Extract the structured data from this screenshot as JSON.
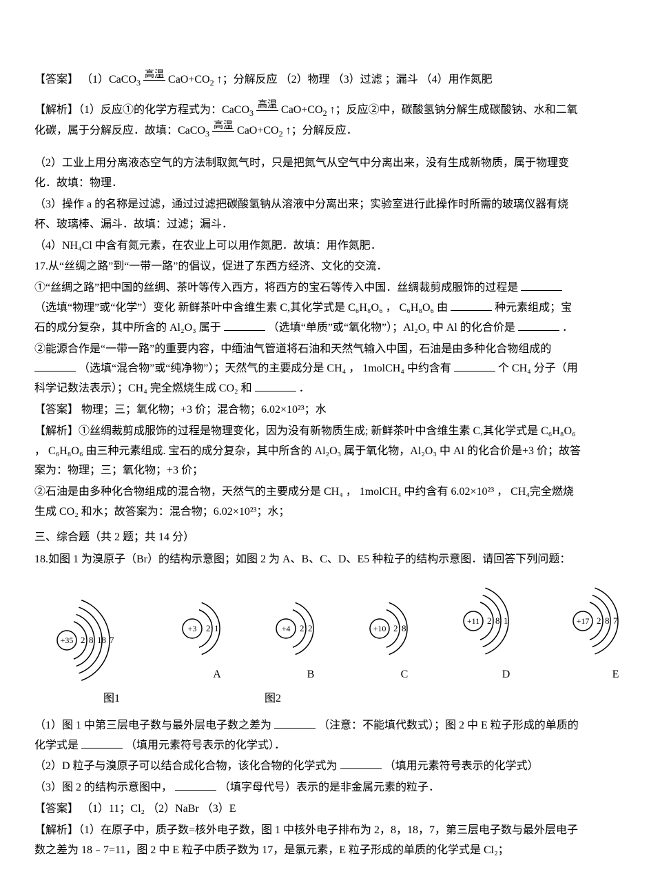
{
  "colors": {
    "text": "#000000",
    "bg": "#ffffff",
    "line": "#000000"
  },
  "typography": {
    "body_fontsize_pt": 12,
    "line_height": 1.8,
    "font_family": "SimSun"
  },
  "a16": {
    "answer_prefix": "【答案】 （1）CaCO",
    "answer_mid1": "CaO+CO",
    "answer_tail": "↑；分解反应 （2）物理 （3）过滤 ；漏斗  （4）用作氮肥",
    "gaowen": "高温",
    "expl_prefix": "【解析】（1）反应①的化学方程式为：CaCO",
    "expl_mid1": "CaO+CO",
    "expl_mid2": "↑；反应②中，碳酸氢钠分解生成碳酸钠、水和二氧化碳，属于分解反应．故填：CaCO",
    "expl_tail": "CaO+CO",
    "expl_end": "↑；分解反应．",
    "p2": "（2）工业上用分离液态空气的方法制取氮气时，只是把氮气从空气中分离出来，没有生成新物质，属于物理变化．故填：物理．",
    "p3": "（3）操作 a 的名称是过滤，通过过滤把碳酸氢钠从溶液中分离出来；实验室进行此操作时所需的玻璃仪器有烧杯、玻璃棒、漏斗．故填：过滤；漏斗．",
    "p4": "（4）NH₄Cl 中含有氮元素，在农业上可以用作氮肥．故填：用作氮肥．"
  },
  "q17": {
    "intro": "17.从“丝绸之路”到“一带一路”的倡议，促进了东西方经济、文化的交流．",
    "p1a": "①“丝绸之路”把中国的丝绸、茶叶等传入西方，将西方的宝石等传入中国．丝绸裁剪成服饰的过程是",
    "p1b": "（选填“物理”或“化学”）变化 新鲜茶叶中含维生素 C,其化学式是 C₆H₈O₆  ，  C₆H₈O₆ 由",
    "p1c": "种元素组成；宝石的成分复杂，其中所含的 Al₂O₃ 属于",
    "p1d": "（选填“单质”或“氧化物”）；Al₂O₃ 中 Al 的化合价是",
    "p1e": "．",
    "p2a": "②能源合作是“一带一路”的重要内容，中缅油气管道将石油和天然气输入中国，石油是由多种化合物组成的",
    "p2b": "（选填“混合物”或“纯净物”）；天然气的主要成分是 CH₄  ，  1molCH₄ 中约含有",
    "p2c": "个 CH₄ 分子（用科学记数法表示）；CH₄ 完全燃烧生成 CO₂ 和",
    "p2d": "．",
    "answer": "【答案】 物理；三；氧化物；+3 价；混合物；6.02×10²³；水",
    "expl1": "【解析】①丝绸裁剪成服饰的过程是物理变化，因为没有新物质生成; 新鲜茶叶中含维生素 C,其化学式是 C₆H₈O₆  ，  C₆H₈O₆ 由三种元素组成. 宝石的成分复杂，其中所含的 Al₂O₃ 属于氧化物，Al₂O₃ 中 Al 的化合价是+3 价；故答案为：物理；三；氧化物；+3 价；",
    "expl2": "②石油是由多种化合物组成的混合物，天然气的主要成分是 CH₄  ，  1molCH₄ 中约含有 6.02×10²³  ，  CH₄完全燃烧生成 CO₂ 和水；故答案为：混合物；6.02×10²³；水；"
  },
  "section3": "三、综合题（共 2 题；共 14 分）",
  "q18": {
    "intro": "18.如图 1 为溴原子（Br）的结构示意图；如图 2 为 A、B、C、D、E5 种粒子的结构示意图．请回答下列问题：",
    "diagrams": {
      "stroke": "#000000",
      "stroke_width": 1.5,
      "font_size": 13,
      "atoms": [
        {
          "key": "br",
          "proton": "+35",
          "shells": [
            "2",
            "8",
            "18",
            "7"
          ],
          "label": "图1",
          "label_below": true
        },
        {
          "key": "A",
          "proton": "+3",
          "shells": [
            "2",
            "1"
          ],
          "label": "A"
        },
        {
          "key": "B",
          "proton": "+4",
          "shells": [
            "2",
            "2"
          ],
          "label": "B"
        },
        {
          "key": "C",
          "proton": "+10",
          "shells": [
            "2",
            "8"
          ],
          "label": "C"
        },
        {
          "key": "D",
          "proton": "+11",
          "shells": [
            "2",
            "8",
            "1"
          ],
          "label": "D"
        },
        {
          "key": "E",
          "proton": "+17",
          "shells": [
            "2",
            "8",
            "7"
          ],
          "label": "E"
        }
      ],
      "fig2_label": "图2"
    },
    "q1a": "（1）图 1 中第三层电子数与最外层电子数之差为",
    "q1b": "（注意：不能填代数式）；图 2 中 E 粒子形成的单质的化学式是",
    "q1c": "（填用元素符号表示的化学式）．",
    "q2a": "（2）D 粒子与溴原子可以结合成化合物，该化合物的化学式为",
    "q2b": "（填用元素符号表示的化学式）",
    "q3a": "（3）图 2 的结构示意图中，",
    "q3b": "（填字母代号）表示的是非金属元素的粒子．",
    "answer": "【答案】 （1）11；Cl₂  （2）NaBr  （3）E",
    "expl": "【解析】（1）在原子中，质子数=核外电子数，图 1 中核外电子排布为 2，8，18，7，第三层电子数与最外层电子数之差为 18﹣7=11，图 2 中 E 粒子中质子数为 17，是氯元素，E 粒子形成的单质的化学式是 Cl₂；"
  }
}
